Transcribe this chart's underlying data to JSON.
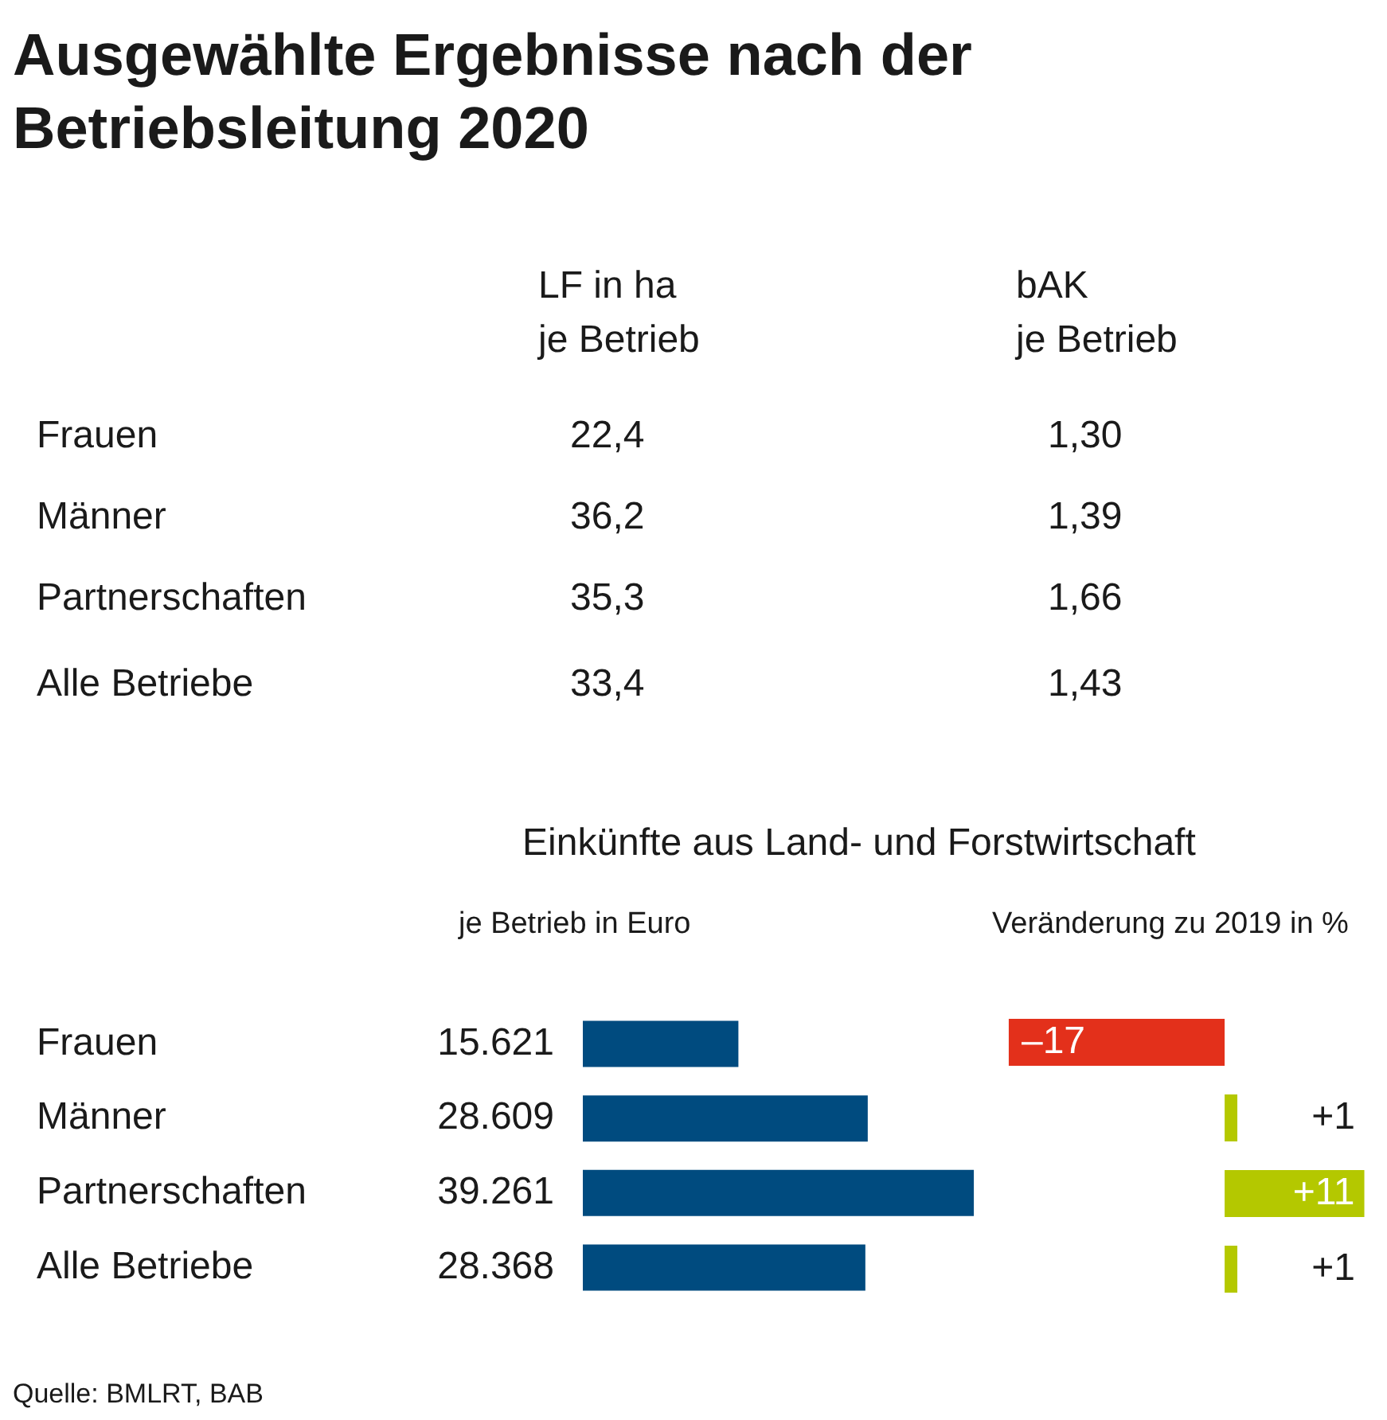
{
  "chart_data": [
    {
      "type": "other",
      "title": "Ausgewählte Ergebnisse nach der Betriebsleitung 2020",
      "categories": [
        "Frauen",
        "Männer",
        "Partnerschaften",
        "Alle Betriebe"
      ],
      "series": [
        {
          "name": "LF in ha\nje Betrieb",
          "values": [
            22.4,
            36.2,
            35.3,
            33.4
          ],
          "value_labels": [
            "22,4",
            "36,2",
            "35,3",
            "33,4"
          ]
        },
        {
          "name": "bAK\nje Betrieb",
          "values": [
            1.3,
            1.39,
            1.66,
            1.43
          ],
          "value_labels": [
            "1,30",
            "1,39",
            "1,66",
            "1,43"
          ]
        }
      ]
    },
    {
      "type": "bar",
      "title": "Einkünfte aus Land- und Forstwirtschaft",
      "subtitle": "je Betrieb in Euro",
      "orientation": "horizontal",
      "tick_labels": "y",
      "categories": [
        "Frauen",
        "Männer",
        "Partnerschaften",
        "Alle Betriebe"
      ],
      "values": [
        15621,
        28609,
        39261,
        28368
      ],
      "color": "#004b7f",
      "value_labels": [
        "15.621",
        "28.609",
        "39.261",
        "28.368"
      ]
    },
    {
      "type": "bar",
      "title": "Veränderung zu 2019 in %",
      "orientation": "horizontal",
      "tick_labels": false,
      "categories": [
        null,
        null,
        null,
        null
      ],
      "values": [
        -17,
        1,
        11,
        1
      ],
      "colors": [
        "#e3301b",
        "#b4c800",
        "#b4c800",
        "#b4c800"
      ],
      "value_labels": [
        "–17",
        "+1",
        "+11",
        "+1"
      ],
      "annotations": [
        "Quelle: BMLRT, BAB"
      ]
    }
  ]
}
